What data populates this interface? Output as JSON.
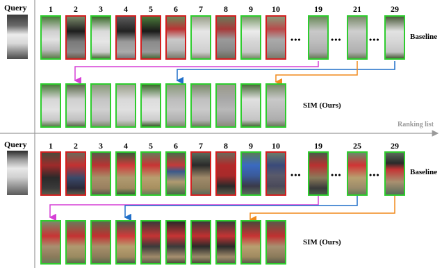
{
  "labels": {
    "query": "Query",
    "baseline": "Baseline",
    "sim_ours": "SIM (Ours)",
    "ranking_list": "Ranking list",
    "ellipsis": "•••"
  },
  "panel1": {
    "ranks": [
      "1",
      "2",
      "3",
      "4",
      "5",
      "6",
      "7",
      "8",
      "9",
      "10",
      "19",
      "21",
      "29"
    ],
    "baseline_match": [
      true,
      false,
      true,
      false,
      false,
      false,
      true,
      false,
      true,
      false,
      true,
      true,
      true
    ],
    "sim_match": [
      true,
      true,
      true,
      true,
      true,
      true,
      true,
      true,
      true,
      true
    ]
  },
  "panel2": {
    "ranks": [
      "1",
      "2",
      "3",
      "4",
      "5",
      "6",
      "7",
      "8",
      "9",
      "10",
      "19",
      "25",
      "29"
    ],
    "baseline_match": [
      false,
      false,
      true,
      true,
      true,
      true,
      false,
      false,
      true,
      false,
      true,
      true,
      true
    ],
    "sim_match": [
      true,
      true,
      true,
      true,
      true,
      true,
      true,
      true,
      true,
      true
    ]
  },
  "colors": {
    "correct": "#2ecc2e",
    "incorrect": "#d11f1f",
    "arrow_magenta": "#d63fd6",
    "arrow_blue": "#1f6fc9",
    "arrow_orange": "#f08a1c",
    "axis": "#9a9a9a"
  }
}
